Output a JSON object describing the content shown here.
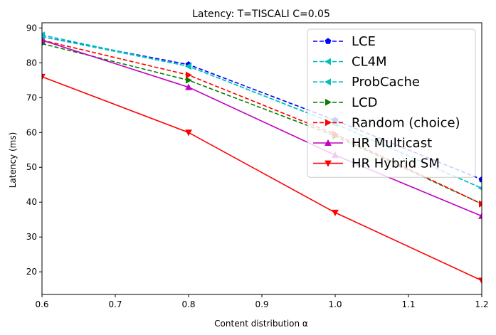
{
  "chart_data": {
    "type": "line",
    "title": "Latency: T=TISCALI C=0.05",
    "xlabel": "Content distribution α",
    "ylabel": "Latency (ms)",
    "xlim": [
      0.6,
      1.2
    ],
    "ylim": [
      13.5,
      91.5
    ],
    "xticks": [
      0.6,
      0.7,
      0.8,
      0.9,
      1.0,
      1.1,
      1.2
    ],
    "xtick_labels": [
      "0.6",
      "0.7",
      "0.8",
      "0.9",
      "1.0",
      "1.1",
      "1.2"
    ],
    "yticks": [
      20,
      30,
      40,
      50,
      60,
      70,
      80,
      90
    ],
    "ytick_labels": [
      "20",
      "30",
      "40",
      "50",
      "60",
      "70",
      "80",
      "90"
    ],
    "grid": false,
    "legend_position": "top-right",
    "x": [
      0.6,
      0.8,
      1.0,
      1.2
    ],
    "series": [
      {
        "name": "LCE",
        "color": "#0000ff",
        "dash": "dashed",
        "marker": "pentagon",
        "values": [
          87.5,
          79.5,
          63.5,
          46.5
        ]
      },
      {
        "name": "CL4M",
        "color": "#00bfbf",
        "dash": "dashed",
        "marker": "triangle-left",
        "values": [
          88.0,
          79.0,
          62.5,
          44.0
        ]
      },
      {
        "name": "ProbCache",
        "color": "#00bfbf",
        "dash": "dashed",
        "marker": "triangle-left",
        "values": [
          87.5,
          79.0,
          62.5,
          44.0
        ]
      },
      {
        "name": "LCD",
        "color": "#008000",
        "dash": "dashed",
        "marker": "triangle-right",
        "values": [
          85.5,
          75.0,
          59.0,
          39.5
        ]
      },
      {
        "name": "Random (choice)",
        "color": "#ff0000",
        "dash": "dashed",
        "marker": "triangle-right",
        "values": [
          86.5,
          76.5,
          59.5,
          39.5
        ]
      },
      {
        "name": "HR Multicast",
        "color": "#bf00bf",
        "dash": "solid",
        "marker": "triangle-up",
        "values": [
          86.5,
          73.0,
          53.5,
          36.0
        ]
      },
      {
        "name": "HR Hybrid SM",
        "color": "#ff0000",
        "dash": "solid",
        "marker": "triangle-down",
        "values": [
          76.0,
          60.0,
          37.0,
          17.5
        ]
      }
    ]
  }
}
